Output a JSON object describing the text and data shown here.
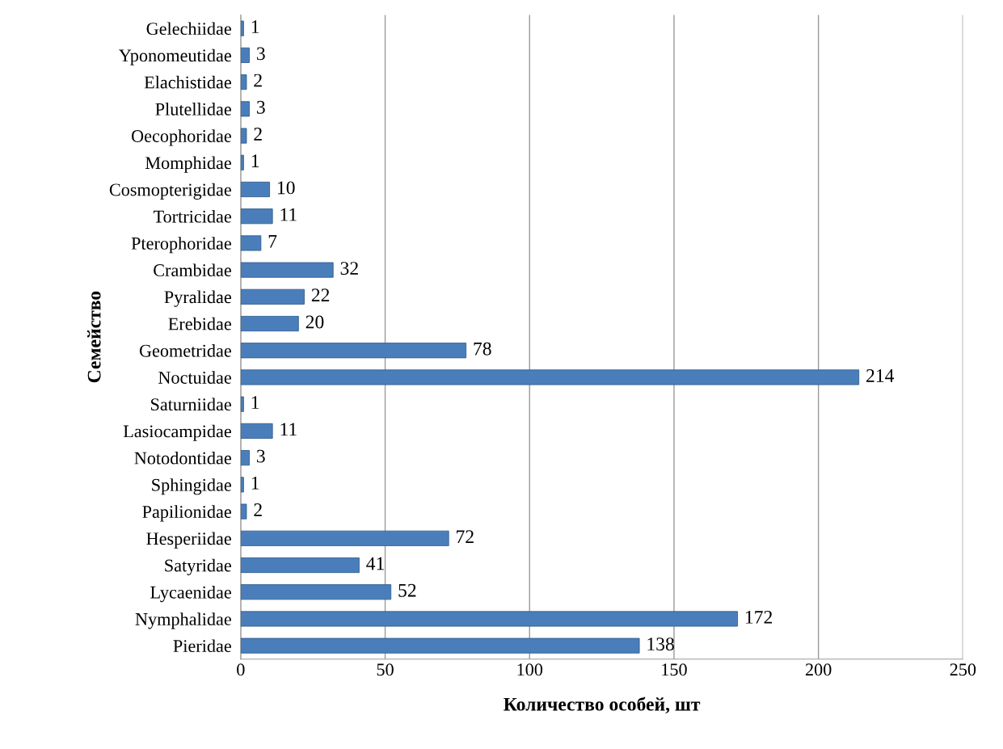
{
  "chart_data": {
    "type": "bar",
    "orientation": "horizontal",
    "xlabel": "Количество особей, шт",
    "ylabel": "Семейство",
    "categories": [
      "Gelechiidae",
      "Yponomeutidae",
      "Elachistidae",
      "Plutellidae",
      "Oecophoridae",
      "Momphidae",
      "Cosmopterigidae",
      "Tortricidae",
      "Pterophoridae",
      "Crambidae",
      "Pyralidae",
      "Erebidae",
      "Geometridae",
      "Noctuidae",
      "Saturniidae",
      "Lasiocampidae",
      "Notodontidae",
      "Sphingidae",
      "Papilionidae",
      "Hesperiidae",
      "Satyridae",
      "Lycaenidae",
      "Nymphalidae",
      "Pieridae"
    ],
    "values": [
      1,
      3,
      2,
      3,
      2,
      1,
      10,
      11,
      7,
      32,
      22,
      20,
      78,
      214,
      1,
      11,
      3,
      1,
      2,
      72,
      41,
      52,
      172,
      138
    ],
    "color": "#4a7ebb",
    "xlim": [
      0,
      250
    ],
    "xticks": [
      0,
      50,
      100,
      150,
      200,
      250
    ],
    "grid": "x",
    "data_labels": true
  }
}
